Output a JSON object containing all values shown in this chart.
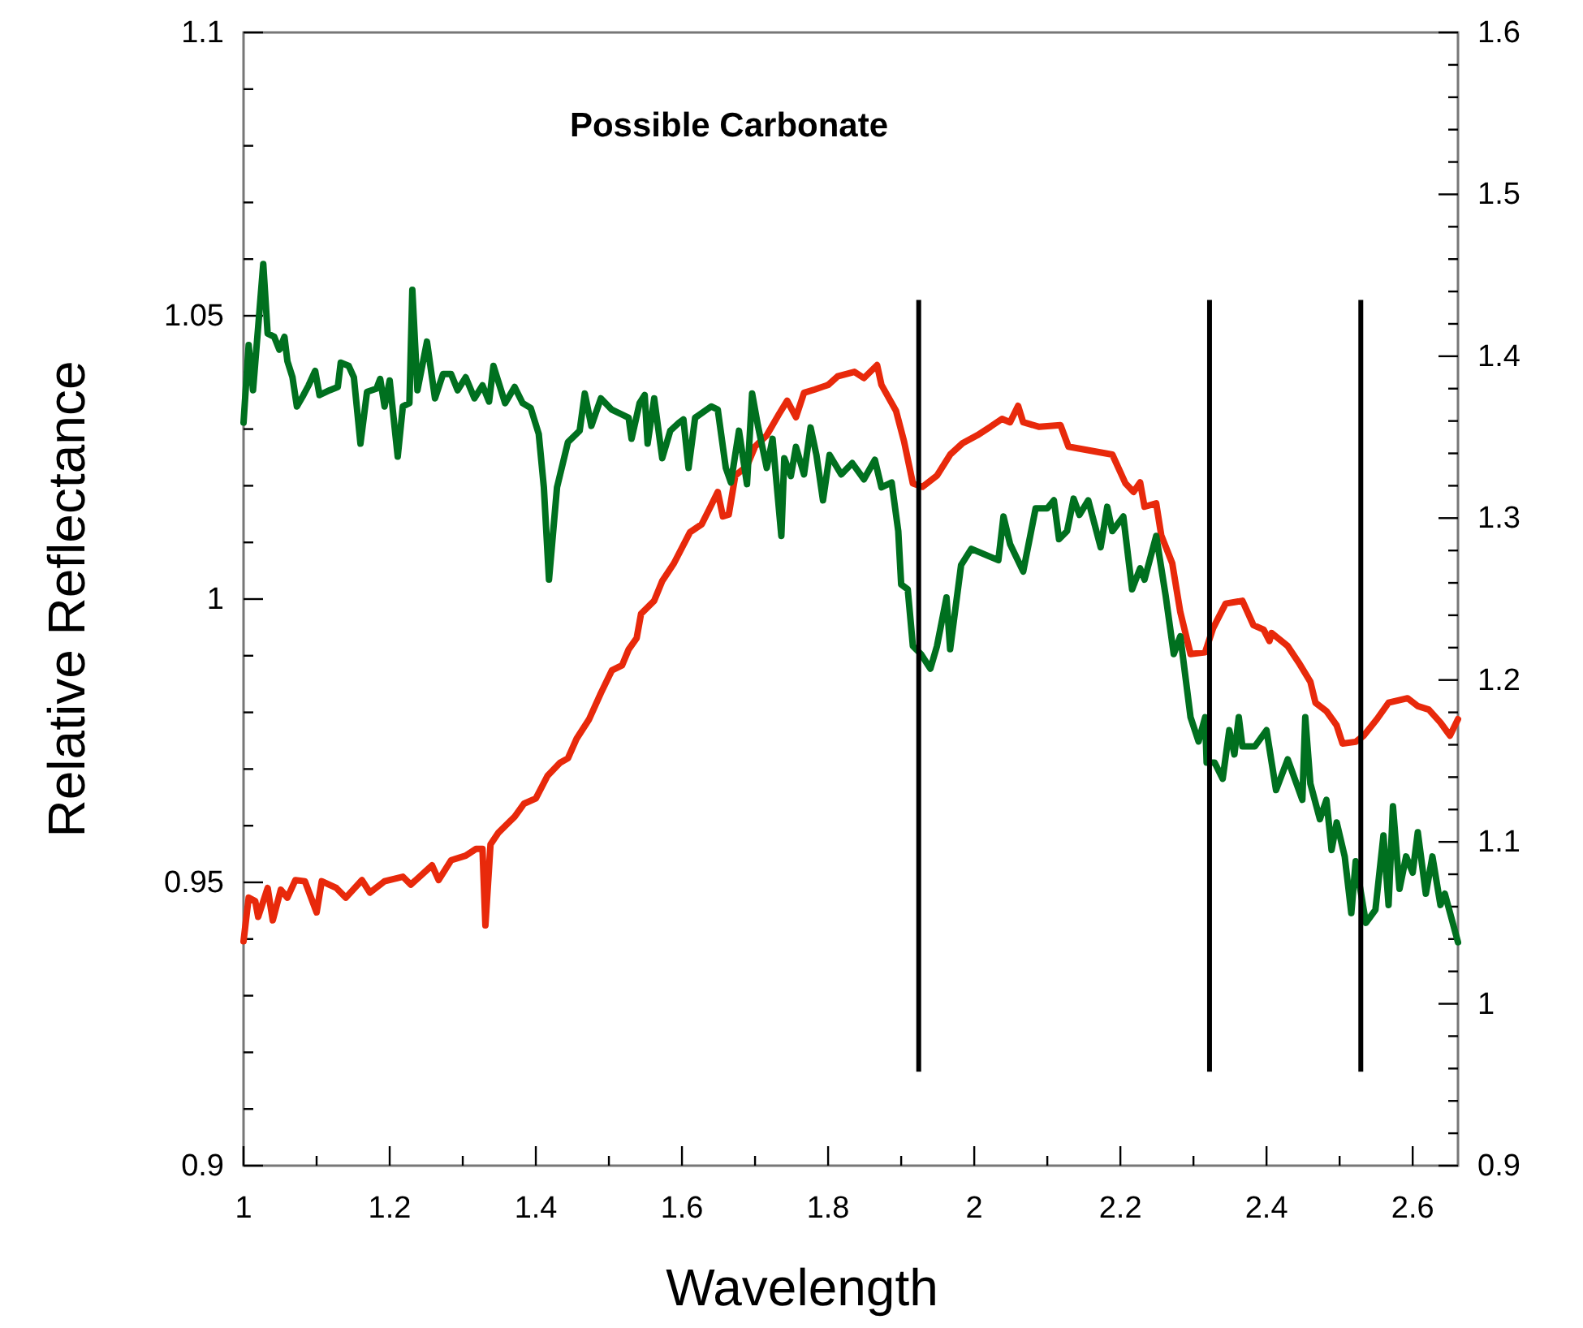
{
  "chart_data": {
    "type": "line",
    "title": "Possible Carbonate",
    "xlabel": "Wavelength",
    "ylabel": "Relative Reflectance",
    "xlim": [
      1,
      2.662
    ],
    "xticks": [
      1,
      {
        "value": 1.1,
        "label": null
      },
      1.2,
      {
        "value": 1.3,
        "label": null
      },
      1.4,
      {
        "value": 1.5,
        "label": null
      },
      1.6,
      {
        "value": 1.7,
        "label": null
      },
      1.8,
      {
        "value": 1.9,
        "label": null
      },
      2,
      {
        "value": 2.1,
        "label": null
      },
      2.2,
      {
        "value": 2.3,
        "label": null
      },
      2.4,
      {
        "value": 2.5,
        "label": null
      },
      2.6
    ],
    "ylim": [
      0.9,
      1.1
    ],
    "yticks": [
      0.9,
      {
        "value": 0.91,
        "label": null
      },
      {
        "value": 0.92,
        "label": null
      },
      {
        "value": 0.93,
        "label": null
      },
      {
        "value": 0.94,
        "label": null
      },
      0.95,
      {
        "value": 0.96,
        "label": null
      },
      {
        "value": 0.97,
        "label": null
      },
      {
        "value": 0.98,
        "label": null
      },
      {
        "value": 0.99,
        "label": null
      },
      1,
      {
        "value": 1.01,
        "label": null
      },
      {
        "value": 1.02,
        "label": null
      },
      {
        "value": 1.03,
        "label": null
      },
      {
        "value": 1.04,
        "label": null
      },
      1.05,
      {
        "value": 1.06,
        "label": null
      },
      {
        "value": 1.07,
        "label": null
      },
      {
        "value": 1.08,
        "label": null
      },
      {
        "value": 1.09,
        "label": null
      },
      1.1
    ],
    "y2lim": [
      0.9,
      1.6
    ],
    "y2ticks": [
      0.9,
      {
        "value": 0.92,
        "label": null
      },
      {
        "value": 0.94,
        "label": null
      },
      {
        "value": 0.96,
        "label": null
      },
      {
        "value": 0.98,
        "label": null
      },
      1,
      {
        "value": 1.02,
        "label": null
      },
      {
        "value": 1.04,
        "label": null
      },
      {
        "value": 1.06,
        "label": null
      },
      {
        "value": 1.08,
        "label": null
      },
      1.1,
      {
        "value": 1.12,
        "label": null
      },
      {
        "value": 1.14,
        "label": null
      },
      {
        "value": 1.16,
        "label": null
      },
      {
        "value": 1.18,
        "label": null
      },
      1.2,
      {
        "value": 1.22,
        "label": null
      },
      {
        "value": 1.24,
        "label": null
      },
      {
        "value": 1.26,
        "label": null
      },
      {
        "value": 1.28,
        "label": null
      },
      1.3,
      {
        "value": 1.32,
        "label": null
      },
      {
        "value": 1.34,
        "label": null
      },
      {
        "value": 1.36,
        "label": null
      },
      {
        "value": 1.38,
        "label": null
      },
      1.4,
      {
        "value": 1.42,
        "label": null
      },
      {
        "value": 1.44,
        "label": null
      },
      {
        "value": 1.46,
        "label": null
      },
      {
        "value": 1.48,
        "label": null
      },
      1.5,
      {
        "value": 1.52,
        "label": null
      },
      {
        "value": 1.54,
        "label": null
      },
      {
        "value": 1.56,
        "label": null
      },
      {
        "value": 1.58,
        "label": null
      },
      1.6
    ],
    "line_style": "solid",
    "ref_lines": [
      {
        "axis": "x",
        "value": 1.924,
        "color": "#000000"
      },
      {
        "axis": "x",
        "value": 2.322,
        "color": "#000000"
      },
      {
        "axis": "x",
        "value": 2.529,
        "color": "#000000"
      }
    ],
    "series": [
      {
        "color": "#e8290b",
        "x": [
          1.0,
          1.007,
          1.016,
          1.02,
          1.033,
          1.04,
          1.051,
          1.06,
          1.071,
          1.084,
          1.1,
          1.107,
          1.127,
          1.14,
          1.162,
          1.173,
          1.193,
          1.218,
          1.229,
          1.258,
          1.267,
          1.284,
          1.304,
          1.318,
          1.327,
          1.331,
          1.338,
          1.349,
          1.371,
          1.384,
          1.4,
          1.416,
          1.433,
          1.444,
          1.456,
          1.473,
          1.489,
          1.504,
          1.518,
          1.527,
          1.538,
          1.544,
          1.562,
          1.573,
          1.589,
          1.611,
          1.627,
          1.636,
          1.649,
          1.656,
          1.664,
          1.673,
          1.689,
          1.7,
          1.716,
          1.733,
          1.744,
          1.756,
          1.767,
          1.782,
          1.8,
          1.813,
          1.836,
          1.849,
          1.867,
          1.873,
          1.893,
          1.904,
          1.916,
          1.929,
          1.949,
          1.967,
          1.984,
          2.004,
          2.022,
          2.038,
          2.049,
          2.06,
          2.067,
          2.089,
          2.118,
          2.129,
          2.189,
          2.207,
          2.218,
          2.227,
          2.233,
          2.249,
          2.256,
          2.271,
          2.282,
          2.296,
          2.316,
          2.327,
          2.344,
          2.367,
          2.382,
          2.396,
          2.404,
          2.407,
          2.429,
          2.444,
          2.46,
          2.467,
          2.482,
          2.496,
          2.504,
          2.522,
          2.533,
          2.551,
          2.567,
          2.593,
          2.607,
          2.622,
          2.638,
          2.651,
          2.662
        ],
        "values": [
          0.9396,
          0.9473,
          0.9467,
          0.9439,
          0.949,
          0.9433,
          0.9487,
          0.9473,
          0.9504,
          0.9502,
          0.9447,
          0.9502,
          0.949,
          0.9473,
          0.9504,
          0.9482,
          0.9502,
          0.951,
          0.9496,
          0.953,
          0.9504,
          0.9539,
          0.9547,
          0.9559,
          0.9559,
          0.9424,
          0.9567,
          0.9588,
          0.9616,
          0.9639,
          0.9648,
          0.9688,
          0.9711,
          0.9719,
          0.9754,
          0.9788,
          0.9834,
          0.9874,
          0.9883,
          0.9911,
          0.9931,
          0.9974,
          0.9997,
          1.0032,
          1.0063,
          1.0118,
          1.0132,
          1.0155,
          1.0189,
          1.0146,
          1.0149,
          1.0218,
          1.0235,
          1.0269,
          1.0289,
          1.0327,
          1.035,
          1.0321,
          1.0364,
          1.037,
          1.0378,
          1.0393,
          1.0401,
          1.039,
          1.0413,
          1.0378,
          1.0332,
          1.0278,
          1.0204,
          1.0198,
          1.0218,
          1.0255,
          1.0275,
          1.0289,
          1.0304,
          1.0318,
          1.0312,
          1.0341,
          1.0312,
          1.0304,
          1.0307,
          1.0269,
          1.0255,
          1.0204,
          1.0189,
          1.0206,
          1.0163,
          1.0169,
          1.0112,
          1.0063,
          0.9977,
          0.9903,
          0.9906,
          0.9949,
          0.9992,
          0.9997,
          0.9954,
          0.9946,
          0.9926,
          0.994,
          0.9917,
          0.9888,
          0.9854,
          0.9817,
          0.9802,
          0.9777,
          0.9745,
          0.9748,
          0.9759,
          0.9788,
          0.9817,
          0.9825,
          0.9811,
          0.9805,
          0.9782,
          0.9759,
          0.9788
        ]
      },
      {
        "color": "#00701f",
        "axis": "y2",
        "x": [
          1.0,
          1.007,
          1.013,
          1.027,
          1.033,
          1.042,
          1.049,
          1.056,
          1.06,
          1.067,
          1.073,
          1.082,
          1.089,
          1.098,
          1.104,
          1.118,
          1.129,
          1.133,
          1.144,
          1.151,
          1.16,
          1.169,
          1.182,
          1.187,
          1.193,
          1.2,
          1.211,
          1.218,
          1.227,
          1.231,
          1.238,
          1.251,
          1.262,
          1.273,
          1.284,
          1.293,
          1.304,
          1.316,
          1.327,
          1.336,
          1.342,
          1.358,
          1.371,
          1.382,
          1.393,
          1.404,
          1.411,
          1.418,
          1.429,
          1.444,
          1.46,
          1.467,
          1.476,
          1.489,
          1.504,
          1.527,
          1.531,
          1.542,
          1.549,
          1.553,
          1.562,
          1.573,
          1.584,
          1.596,
          1.602,
          1.609,
          1.618,
          1.64,
          1.649,
          1.66,
          1.667,
          1.678,
          1.689,
          1.696,
          1.704,
          1.716,
          1.724,
          1.736,
          1.74,
          1.749,
          1.756,
          1.767,
          1.776,
          1.784,
          1.793,
          1.802,
          1.818,
          1.833,
          1.849,
          1.864,
          1.873,
          1.887,
          1.896,
          1.9,
          1.909,
          1.916,
          1.927,
          1.94,
          1.949,
          1.962,
          1.967,
          1.982,
          1.996,
          2.033,
          2.04,
          2.049,
          2.067,
          2.084,
          2.1,
          2.109,
          2.116,
          2.127,
          2.136,
          2.144,
          2.156,
          2.173,
          2.182,
          2.189,
          2.204,
          2.216,
          2.227,
          2.233,
          2.249,
          2.262,
          2.273,
          2.282,
          2.296,
          2.307,
          2.316,
          2.318,
          2.329,
          2.34,
          2.349,
          2.356,
          2.362,
          2.367,
          2.384,
          2.4,
          2.413,
          2.429,
          2.449,
          2.453,
          2.46,
          2.473,
          2.482,
          2.489,
          2.496,
          2.507,
          2.516,
          2.522,
          2.536,
          2.549,
          2.56,
          2.567,
          2.573,
          2.582,
          2.591,
          2.6,
          2.607,
          2.618,
          2.627,
          2.638,
          2.644,
          2.662
        ],
        "values": [
          1.359,
          1.407,
          1.379,
          1.457,
          1.414,
          1.412,
          1.404,
          1.412,
          1.397,
          1.387,
          1.369,
          1.376,
          1.382,
          1.391,
          1.376,
          1.379,
          1.381,
          1.396,
          1.394,
          1.387,
          1.346,
          1.378,
          1.38,
          1.386,
          1.369,
          1.385,
          1.338,
          1.369,
          1.371,
          1.441,
          1.379,
          1.409,
          1.374,
          1.389,
          1.389,
          1.379,
          1.387,
          1.374,
          1.382,
          1.372,
          1.394,
          1.371,
          1.381,
          1.371,
          1.368,
          1.352,
          1.319,
          1.262,
          1.319,
          1.347,
          1.354,
          1.377,
          1.357,
          1.374,
          1.367,
          1.362,
          1.349,
          1.371,
          1.376,
          1.346,
          1.374,
          1.337,
          1.354,
          1.359,
          1.361,
          1.331,
          1.362,
          1.369,
          1.367,
          1.331,
          1.322,
          1.354,
          1.321,
          1.377,
          1.357,
          1.331,
          1.349,
          1.289,
          1.337,
          1.326,
          1.344,
          1.327,
          1.356,
          1.339,
          1.311,
          1.339,
          1.327,
          1.334,
          1.324,
          1.336,
          1.319,
          1.322,
          1.292,
          1.259,
          1.256,
          1.221,
          1.216,
          1.207,
          1.221,
          1.251,
          1.219,
          1.271,
          1.281,
          1.274,
          1.301,
          1.284,
          1.267,
          1.306,
          1.306,
          1.311,
          1.287,
          1.292,
          1.312,
          1.302,
          1.311,
          1.282,
          1.307,
          1.292,
          1.301,
          1.256,
          1.269,
          1.262,
          1.289,
          1.252,
          1.216,
          1.227,
          1.177,
          1.162,
          1.177,
          1.149,
          1.149,
          1.139,
          1.169,
          1.154,
          1.177,
          1.159,
          1.159,
          1.169,
          1.132,
          1.151,
          1.126,
          1.177,
          1.136,
          1.114,
          1.126,
          1.095,
          1.112,
          1.091,
          1.056,
          1.088,
          1.05,
          1.058,
          1.104,
          1.061,
          1.122,
          1.071,
          1.091,
          1.081,
          1.106,
          1.068,
          1.091,
          1.061,
          1.068,
          1.038
        ]
      }
    ]
  }
}
